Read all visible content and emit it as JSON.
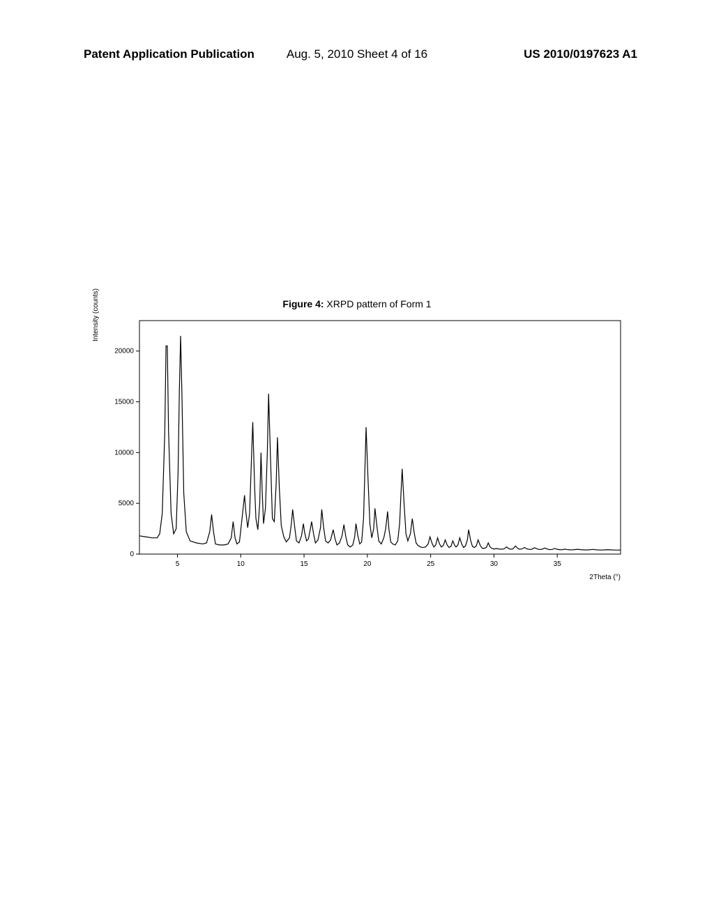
{
  "header": {
    "left": "Patent Application Publication",
    "center": "Aug. 5, 2010   Sheet 4 of 16",
    "right": "US 2010/0197623 A1"
  },
  "figure": {
    "title_bold": "Figure 4:",
    "title_rest": " XRPD pattern of Form 1",
    "type": "line",
    "ylabel": "Intensity (counts)",
    "xlabel": "2Theta (°)",
    "xlim": [
      2,
      40
    ],
    "ylim": [
      0,
      23000
    ],
    "xticks": [
      5,
      10,
      15,
      20,
      25,
      30,
      35
    ],
    "yticks": [
      0,
      5000,
      10000,
      15000,
      20000
    ],
    "line_color": "#000000",
    "line_width": 1.2,
    "background_color": "#ffffff",
    "border_color": "#000000",
    "axis_fontsize": 10,
    "data": [
      [
        2.0,
        1800
      ],
      [
        2.5,
        1700
      ],
      [
        3.0,
        1600
      ],
      [
        3.4,
        1600
      ],
      [
        3.6,
        2000
      ],
      [
        3.8,
        4000
      ],
      [
        4.0,
        12000
      ],
      [
        4.1,
        20500
      ],
      [
        4.2,
        20500
      ],
      [
        4.3,
        12000
      ],
      [
        4.5,
        4000
      ],
      [
        4.7,
        2000
      ],
      [
        4.9,
        2500
      ],
      [
        5.05,
        8000
      ],
      [
        5.15,
        16000
      ],
      [
        5.25,
        21500
      ],
      [
        5.35,
        16000
      ],
      [
        5.5,
        6000
      ],
      [
        5.7,
        2200
      ],
      [
        6.0,
        1300
      ],
      [
        6.5,
        1100
      ],
      [
        7.0,
        1000
      ],
      [
        7.3,
        1100
      ],
      [
        7.55,
        2200
      ],
      [
        7.7,
        3900
      ],
      [
        7.85,
        2200
      ],
      [
        8.0,
        1000
      ],
      [
        8.3,
        900
      ],
      [
        8.7,
        900
      ],
      [
        9.0,
        1000
      ],
      [
        9.25,
        1600
      ],
      [
        9.4,
        3200
      ],
      [
        9.55,
        1600
      ],
      [
        9.7,
        1000
      ],
      [
        9.9,
        1200
      ],
      [
        10.1,
        3500
      ],
      [
        10.3,
        5800
      ],
      [
        10.4,
        4200
      ],
      [
        10.55,
        2600
      ],
      [
        10.7,
        4000
      ],
      [
        10.85,
        9500
      ],
      [
        10.95,
        13000
      ],
      [
        11.1,
        6500
      ],
      [
        11.2,
        3500
      ],
      [
        11.35,
        2400
      ],
      [
        11.5,
        5000
      ],
      [
        11.6,
        10000
      ],
      [
        11.7,
        6000
      ],
      [
        11.8,
        3000
      ],
      [
        11.95,
        4500
      ],
      [
        12.1,
        10000
      ],
      [
        12.2,
        15800
      ],
      [
        12.35,
        9500
      ],
      [
        12.5,
        3500
      ],
      [
        12.65,
        3200
      ],
      [
        12.8,
        7000
      ],
      [
        12.9,
        11500
      ],
      [
        13.05,
        6500
      ],
      [
        13.2,
        2800
      ],
      [
        13.4,
        1700
      ],
      [
        13.6,
        1200
      ],
      [
        13.85,
        1600
      ],
      [
        14.0,
        3000
      ],
      [
        14.1,
        4400
      ],
      [
        14.25,
        2800
      ],
      [
        14.4,
        1300
      ],
      [
        14.6,
        1100
      ],
      [
        14.8,
        1800
      ],
      [
        14.95,
        3000
      ],
      [
        15.05,
        2100
      ],
      [
        15.2,
        1300
      ],
      [
        15.35,
        1500
      ],
      [
        15.5,
        2500
      ],
      [
        15.6,
        3200
      ],
      [
        15.75,
        2000
      ],
      [
        15.9,
        1100
      ],
      [
        16.1,
        1400
      ],
      [
        16.3,
        2600
      ],
      [
        16.4,
        4400
      ],
      [
        16.55,
        2600
      ],
      [
        16.7,
        1300
      ],
      [
        16.9,
        1100
      ],
      [
        17.1,
        1400
      ],
      [
        17.3,
        2400
      ],
      [
        17.45,
        1500
      ],
      [
        17.6,
        900
      ],
      [
        17.8,
        1100
      ],
      [
        18.0,
        1800
      ],
      [
        18.15,
        2900
      ],
      [
        18.3,
        1700
      ],
      [
        18.45,
        900
      ],
      [
        18.65,
        700
      ],
      [
        18.85,
        900
      ],
      [
        19.0,
        1700
      ],
      [
        19.1,
        3000
      ],
      [
        19.25,
        1800
      ],
      [
        19.4,
        1000
      ],
      [
        19.55,
        1200
      ],
      [
        19.7,
        3500
      ],
      [
        19.8,
        8000
      ],
      [
        19.9,
        12500
      ],
      [
        20.05,
        7500
      ],
      [
        20.2,
        3000
      ],
      [
        20.35,
        1600
      ],
      [
        20.5,
        2500
      ],
      [
        20.6,
        4500
      ],
      [
        20.75,
        2800
      ],
      [
        20.9,
        1300
      ],
      [
        21.1,
        1000
      ],
      [
        21.3,
        1600
      ],
      [
        21.45,
        2500
      ],
      [
        21.6,
        4200
      ],
      [
        21.7,
        2500
      ],
      [
        21.85,
        1200
      ],
      [
        22.0,
        1000
      ],
      [
        22.2,
        900
      ],
      [
        22.4,
        1300
      ],
      [
        22.55,
        3000
      ],
      [
        22.65,
        5800
      ],
      [
        22.75,
        8400
      ],
      [
        22.9,
        5000
      ],
      [
        23.05,
        2000
      ],
      [
        23.2,
        1300
      ],
      [
        23.4,
        2000
      ],
      [
        23.55,
        3500
      ],
      [
        23.7,
        2100
      ],
      [
        23.85,
        1100
      ],
      [
        24.0,
        850
      ],
      [
        24.2,
        700
      ],
      [
        24.4,
        650
      ],
      [
        24.6,
        700
      ],
      [
        24.8,
        1000
      ],
      [
        24.95,
        1700
      ],
      [
        25.1,
        1100
      ],
      [
        25.25,
        700
      ],
      [
        25.4,
        900
      ],
      [
        25.55,
        1600
      ],
      [
        25.7,
        1000
      ],
      [
        25.85,
        700
      ],
      [
        26.0,
        850
      ],
      [
        26.15,
        1400
      ],
      [
        26.3,
        900
      ],
      [
        26.45,
        650
      ],
      [
        26.6,
        750
      ],
      [
        26.75,
        1300
      ],
      [
        26.9,
        850
      ],
      [
        27.0,
        700
      ],
      [
        27.15,
        900
      ],
      [
        27.3,
        1600
      ],
      [
        27.45,
        1000
      ],
      [
        27.6,
        650
      ],
      [
        27.75,
        800
      ],
      [
        27.9,
        1400
      ],
      [
        28.0,
        2400
      ],
      [
        28.15,
        1400
      ],
      [
        28.3,
        750
      ],
      [
        28.45,
        650
      ],
      [
        28.6,
        800
      ],
      [
        28.75,
        1400
      ],
      [
        28.9,
        900
      ],
      [
        29.05,
        600
      ],
      [
        29.2,
        550
      ],
      [
        29.4,
        650
      ],
      [
        29.55,
        1100
      ],
      [
        29.7,
        700
      ],
      [
        29.85,
        550
      ],
      [
        30.0,
        500
      ],
      [
        30.2,
        550
      ],
      [
        30.4,
        500
      ],
      [
        30.6,
        480
      ],
      [
        30.8,
        520
      ],
      [
        31.0,
        700
      ],
      [
        31.15,
        550
      ],
      [
        31.3,
        480
      ],
      [
        31.5,
        520
      ],
      [
        31.7,
        800
      ],
      [
        31.85,
        600
      ],
      [
        32.0,
        480
      ],
      [
        32.2,
        500
      ],
      [
        32.4,
        650
      ],
      [
        32.6,
        520
      ],
      [
        32.8,
        460
      ],
      [
        33.0,
        480
      ],
      [
        33.2,
        620
      ],
      [
        33.4,
        520
      ],
      [
        33.6,
        450
      ],
      [
        33.8,
        470
      ],
      [
        34.0,
        600
      ],
      [
        34.2,
        500
      ],
      [
        34.4,
        440
      ],
      [
        34.6,
        460
      ],
      [
        34.8,
        550
      ],
      [
        35.0,
        470
      ],
      [
        35.2,
        430
      ],
      [
        35.4,
        440
      ],
      [
        35.6,
        490
      ],
      [
        35.8,
        440
      ],
      [
        36.0,
        420
      ],
      [
        36.3,
        430
      ],
      [
        36.6,
        470
      ],
      [
        36.9,
        430
      ],
      [
        37.2,
        410
      ],
      [
        37.5,
        420
      ],
      [
        37.8,
        460
      ],
      [
        38.1,
        420
      ],
      [
        38.4,
        400
      ],
      [
        38.7,
        410
      ],
      [
        39.0,
        440
      ],
      [
        39.3,
        410
      ],
      [
        39.6,
        400
      ],
      [
        40.0,
        400
      ]
    ]
  }
}
